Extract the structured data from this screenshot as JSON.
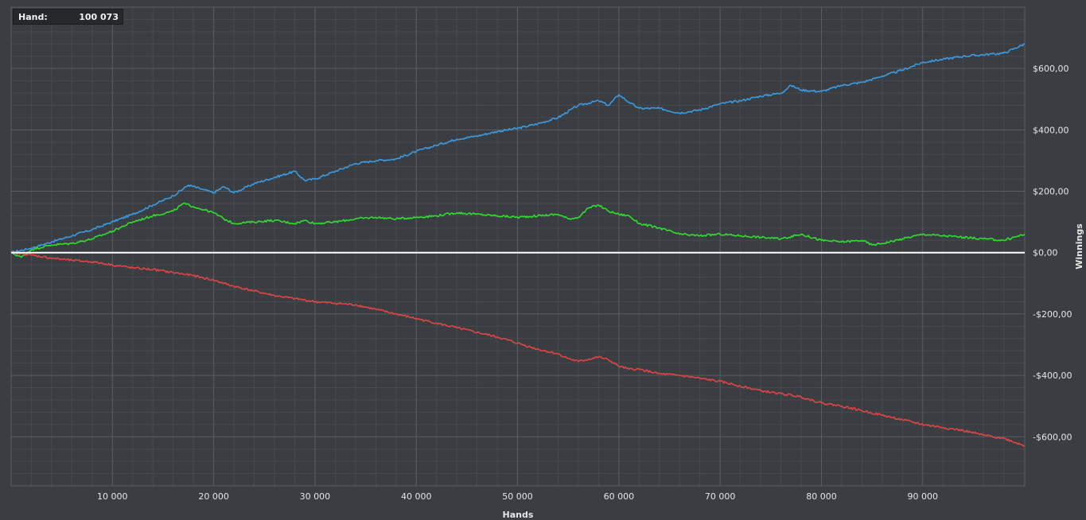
{
  "hand_box": {
    "label": "Hand:",
    "value": "100 073"
  },
  "colors": {
    "background": "#3a3d41",
    "grid_major": "#5b5f63",
    "grid_minor": "#474a4e",
    "zero_line": "#ffffff",
    "text": "#e6e6e6"
  },
  "chart_data": {
    "type": "line",
    "title": "",
    "xlabel": "Hands",
    "ylabel": "Winnings",
    "xlim": [
      0,
      100073
    ],
    "ylim": [
      -760,
      800
    ],
    "grid": true,
    "legend": "none",
    "y_axis_position": "right",
    "x_ticks": [
      10000,
      20000,
      30000,
      40000,
      50000,
      60000,
      70000,
      80000,
      90000
    ],
    "x_tick_labels": [
      "10 000",
      "20 000",
      "30 000",
      "40 000",
      "50 000",
      "60 000",
      "70 000",
      "80 000",
      "90 000"
    ],
    "y_ticks": [
      600,
      400,
      200,
      0,
      -200,
      -400,
      -600
    ],
    "y_tick_labels": [
      "$600,00",
      "$400,00",
      "$200,00",
      "$0,00",
      "-$200,00",
      "-$400,00",
      "-$600,00"
    ],
    "series": [
      {
        "color": "#3c9ae0",
        "x": [
          0,
          2000,
          4000,
          6000,
          8000,
          10000,
          12000,
          14000,
          16000,
          17500,
          19000,
          20000,
          21000,
          22000,
          24000,
          26000,
          28000,
          29000,
          30000,
          32000,
          34000,
          36000,
          38000,
          40000,
          42000,
          44000,
          46000,
          48000,
          50000,
          52000,
          54000,
          56000,
          58000,
          59000,
          60000,
          61000,
          62000,
          64000,
          66000,
          68000,
          70000,
          72000,
          74000,
          76000,
          77000,
          78000,
          80000,
          82000,
          84000,
          86000,
          88000,
          90000,
          92000,
          94000,
          96000,
          98000,
          100073
        ],
        "y": [
          0,
          15,
          35,
          55,
          75,
          100,
          125,
          155,
          185,
          220,
          205,
          195,
          215,
          195,
          225,
          245,
          265,
          235,
          240,
          265,
          290,
          300,
          305,
          330,
          350,
          370,
          380,
          395,
          405,
          420,
          440,
          480,
          495,
          480,
          515,
          490,
          470,
          470,
          455,
          465,
          485,
          495,
          510,
          520,
          545,
          530,
          525,
          545,
          555,
          575,
          595,
          620,
          630,
          640,
          645,
          650,
          680
        ]
      },
      {
        "color": "#2fde2f",
        "x": [
          0,
          1000,
          2000,
          4000,
          6000,
          8000,
          10000,
          12000,
          14000,
          16000,
          17000,
          18000,
          19000,
          20000,
          21000,
          22000,
          24000,
          26000,
          28000,
          29000,
          30000,
          32000,
          34000,
          36000,
          38000,
          40000,
          42000,
          44000,
          46000,
          48000,
          50000,
          52000,
          54000,
          55000,
          56000,
          57000,
          58000,
          59000,
          60000,
          61000,
          62000,
          64000,
          66000,
          68000,
          70000,
          72000,
          74000,
          76000,
          78000,
          80000,
          82000,
          84000,
          85000,
          86000,
          88000,
          90000,
          92000,
          94000,
          96000,
          98000,
          100073
        ],
        "y": [
          0,
          -15,
          10,
          25,
          30,
          45,
          70,
          100,
          120,
          135,
          160,
          150,
          140,
          130,
          110,
          95,
          100,
          105,
          95,
          105,
          95,
          100,
          110,
          115,
          110,
          115,
          120,
          130,
          125,
          120,
          115,
          120,
          125,
          110,
          115,
          145,
          155,
          135,
          125,
          120,
          95,
          80,
          60,
          55,
          60,
          55,
          50,
          45,
          60,
          40,
          35,
          40,
          25,
          30,
          45,
          60,
          55,
          50,
          45,
          40,
          60
        ]
      },
      {
        "color": "#e04545",
        "x": [
          0,
          2000,
          4000,
          6000,
          8000,
          10000,
          12000,
          14000,
          16000,
          18000,
          20000,
          22000,
          24000,
          26000,
          28000,
          30000,
          32000,
          34000,
          36000,
          38000,
          40000,
          42000,
          44000,
          46000,
          48000,
          50000,
          52000,
          54000,
          55000,
          56000,
          58000,
          59000,
          60000,
          61000,
          62000,
          64000,
          66000,
          68000,
          70000,
          72000,
          74000,
          76000,
          78000,
          80000,
          82000,
          84000,
          86000,
          88000,
          90000,
          92000,
          94000,
          96000,
          98000,
          100073
        ],
        "y": [
          0,
          -8,
          -18,
          -25,
          -30,
          -40,
          -50,
          -55,
          -65,
          -75,
          -90,
          -110,
          -125,
          -140,
          -150,
          -160,
          -165,
          -170,
          -185,
          -200,
          -215,
          -230,
          -245,
          -260,
          -275,
          -295,
          -315,
          -330,
          -345,
          -355,
          -340,
          -350,
          -370,
          -380,
          -380,
          -395,
          -400,
          -410,
          -420,
          -435,
          -450,
          -460,
          -470,
          -490,
          -500,
          -515,
          -530,
          -545,
          -560,
          -570,
          -580,
          -595,
          -605,
          -630
        ]
      }
    ]
  }
}
